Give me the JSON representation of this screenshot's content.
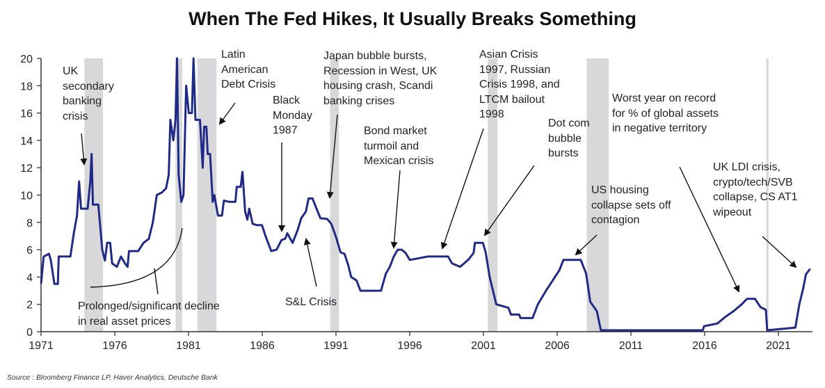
{
  "chart_data": {
    "type": "line",
    "title": "When The Fed Hikes, It Usually Breaks Something",
    "xlabel": "",
    "ylabel": "",
    "xlim": [
      1971,
      2023.2
    ],
    "ylim": [
      0,
      20
    ],
    "x_ticks": [
      "1971",
      "1976",
      "1981",
      "1986",
      "1991",
      "1996",
      "2001",
      "2006",
      "2011",
      "2016",
      "2021"
    ],
    "y_ticks": [
      "0",
      "2",
      "4",
      "6",
      "8",
      "10",
      "12",
      "14",
      "16",
      "18",
      "20"
    ],
    "grid": false,
    "legend": "none",
    "line_color": "#1f2a87",
    "shade_color": "#d8d8db",
    "shaded_periods": [
      [
        1973.94,
        1975.2
      ],
      [
        1980.12,
        1980.58
      ],
      [
        1981.6,
        1982.9
      ],
      [
        1990.6,
        1991.2
      ],
      [
        2001.3,
        2001.95
      ],
      [
        2008.0,
        2009.5
      ],
      [
        2020.18,
        2020.33
      ]
    ],
    "series": [
      {
        "points": [
          [
            1971.0,
            3.5
          ],
          [
            1971.18,
            5.5
          ],
          [
            1971.54,
            5.7
          ],
          [
            1971.67,
            5.2
          ],
          [
            1971.9,
            3.5
          ],
          [
            1972.14,
            3.5
          ],
          [
            1972.2,
            5.5
          ],
          [
            1972.99,
            5.5
          ],
          [
            1973.22,
            7.2
          ],
          [
            1973.44,
            8.5
          ],
          [
            1973.58,
            11
          ],
          [
            1973.71,
            9
          ],
          [
            1974.16,
            9
          ],
          [
            1974.34,
            11
          ],
          [
            1974.43,
            13
          ],
          [
            1974.52,
            9.3
          ],
          [
            1974.88,
            9.3
          ],
          [
            1975.15,
            6
          ],
          [
            1975.33,
            5.2
          ],
          [
            1975.48,
            6.5
          ],
          [
            1975.69,
            6.5
          ],
          [
            1975.82,
            5
          ],
          [
            1976.14,
            4.75
          ],
          [
            1976.42,
            5.5
          ],
          [
            1976.69,
            5
          ],
          [
            1976.87,
            4.75
          ],
          [
            1976.96,
            5.9
          ],
          [
            1977.59,
            5.9
          ],
          [
            1977.95,
            6.5
          ],
          [
            1978.31,
            6.8
          ],
          [
            1978.58,
            8
          ],
          [
            1978.85,
            10
          ],
          [
            1979.21,
            10.2
          ],
          [
            1979.48,
            10.5
          ],
          [
            1979.66,
            11.5
          ],
          [
            1979.77,
            15.5
          ],
          [
            1979.97,
            14
          ],
          [
            1980.12,
            15.5
          ],
          [
            1980.22,
            20
          ],
          [
            1980.33,
            11.5
          ],
          [
            1980.51,
            9.5
          ],
          [
            1980.66,
            10
          ],
          [
            1980.84,
            18
          ],
          [
            1981.02,
            16
          ],
          [
            1981.23,
            16
          ],
          [
            1981.34,
            20
          ],
          [
            1981.47,
            15.5
          ],
          [
            1981.78,
            15.5
          ],
          [
            1981.96,
            12
          ],
          [
            1982.06,
            15
          ],
          [
            1982.21,
            15
          ],
          [
            1982.3,
            13
          ],
          [
            1982.46,
            13
          ],
          [
            1982.64,
            9.5
          ],
          [
            1982.75,
            10
          ],
          [
            1983.0,
            8.5
          ],
          [
            1983.27,
            8.5
          ],
          [
            1983.4,
            9.6
          ],
          [
            1983.76,
            9.5
          ],
          [
            1984.18,
            9.5
          ],
          [
            1984.27,
            10.6
          ],
          [
            1984.54,
            10.6
          ],
          [
            1984.66,
            11.7
          ],
          [
            1984.84,
            8.8
          ],
          [
            1984.99,
            8.2
          ],
          [
            1985.12,
            9
          ],
          [
            1985.35,
            7.9
          ],
          [
            1985.62,
            7.8
          ],
          [
            1985.98,
            7.8
          ],
          [
            1986.22,
            7
          ],
          [
            1986.61,
            5.9
          ],
          [
            1986.97,
            6
          ],
          [
            1987.3,
            6.7
          ],
          [
            1987.55,
            6.8
          ],
          [
            1987.7,
            7.2
          ],
          [
            1988.06,
            6.5
          ],
          [
            1988.42,
            7.5
          ],
          [
            1988.64,
            8.3
          ],
          [
            1988.96,
            8.8
          ],
          [
            1989.14,
            9.75
          ],
          [
            1989.41,
            9.75
          ],
          [
            1989.68,
            9
          ],
          [
            1989.95,
            8.3
          ],
          [
            1990.4,
            8.25
          ],
          [
            1990.68,
            7.9
          ],
          [
            1990.98,
            7
          ],
          [
            1991.31,
            5.8
          ],
          [
            1991.58,
            5.7
          ],
          [
            1991.85,
            4.8
          ],
          [
            1992.03,
            4
          ],
          [
            1992.39,
            3.75
          ],
          [
            1992.66,
            3
          ],
          [
            1994.05,
            3
          ],
          [
            1994.38,
            4.25
          ],
          [
            1994.65,
            4.75
          ],
          [
            1994.92,
            5.5
          ],
          [
            1995.19,
            6
          ],
          [
            1995.46,
            6
          ],
          [
            1995.73,
            5.75
          ],
          [
            1996.0,
            5.25
          ],
          [
            1997.24,
            5.5
          ],
          [
            1998.6,
            5.5
          ],
          [
            1998.87,
            5
          ],
          [
            1999.42,
            4.75
          ],
          [
            1999.96,
            5.25
          ],
          [
            2000.33,
            5.75
          ],
          [
            2000.42,
            6.5
          ],
          [
            2000.96,
            6.5
          ],
          [
            2001.15,
            5.8
          ],
          [
            2001.42,
            4
          ],
          [
            2001.87,
            2
          ],
          [
            2002.69,
            1.75
          ],
          [
            2002.87,
            1.25
          ],
          [
            2003.42,
            1.25
          ],
          [
            2003.51,
            1.0
          ],
          [
            2004.33,
            1.0
          ],
          [
            2004.69,
            2
          ],
          [
            2005.24,
            3
          ],
          [
            2006.15,
            4.5
          ],
          [
            2006.42,
            5.25
          ],
          [
            2007.6,
            5.25
          ],
          [
            2007.96,
            4.25
          ],
          [
            2008.24,
            2.2
          ],
          [
            2008.69,
            1.5
          ],
          [
            2008.96,
            0.1
          ],
          [
            2015.87,
            0.1
          ],
          [
            2015.96,
            0.4
          ],
          [
            2016.87,
            0.6
          ],
          [
            2017.42,
            1.1
          ],
          [
            2017.96,
            1.5
          ],
          [
            2018.51,
            2.0
          ],
          [
            2018.87,
            2.4
          ],
          [
            2019.42,
            2.4
          ],
          [
            2019.78,
            1.8
          ],
          [
            2020.15,
            1.6
          ],
          [
            2020.24,
            0.1
          ],
          [
            2022.15,
            0.3
          ],
          [
            2022.42,
            2.0
          ],
          [
            2022.69,
            3.2
          ],
          [
            2022.87,
            4.2
          ],
          [
            2023.15,
            4.6
          ]
        ]
      }
    ],
    "annotations": [
      {
        "lines": [
          "UK",
          "secondary",
          "banking",
          "crisis"
        ]
      },
      {
        "lines": [
          "Latin",
          "American",
          "Debt Crisis"
        ]
      },
      {
        "lines": [
          "Black",
          "Monday",
          "1987"
        ]
      },
      {
        "lines": [
          "Japan bubble bursts,",
          "Recession in West, UK",
          "housing crash, Scandi",
          "banking crises"
        ]
      },
      {
        "lines": [
          "Bond market",
          "turmoil and",
          "Mexican crisis"
        ]
      },
      {
        "lines": [
          "Asian Crisis",
          "1997, Russian",
          "Crisis 1998, and",
          "LTCM bailout",
          "1998"
        ]
      },
      {
        "lines": [
          "Dot com",
          "bubble",
          "bursts"
        ]
      },
      {
        "lines": [
          "US housing",
          "collapse sets off",
          "contagion"
        ]
      },
      {
        "lines": [
          "Worst year on record",
          "for % of global assets",
          "in negative territory"
        ]
      },
      {
        "lines": [
          "UK LDI crisis,",
          "crypto/tech/SVB",
          "collapse, CS AT1",
          "wipeout"
        ]
      },
      {
        "lines": [
          "S&L Crisis"
        ]
      },
      {
        "lines": [
          "Prolonged/significant decline",
          "in real asset prices"
        ]
      }
    ],
    "source": "Source : Bloomberg Finance LP, Haver Analytics, Deutsche Bank"
  }
}
